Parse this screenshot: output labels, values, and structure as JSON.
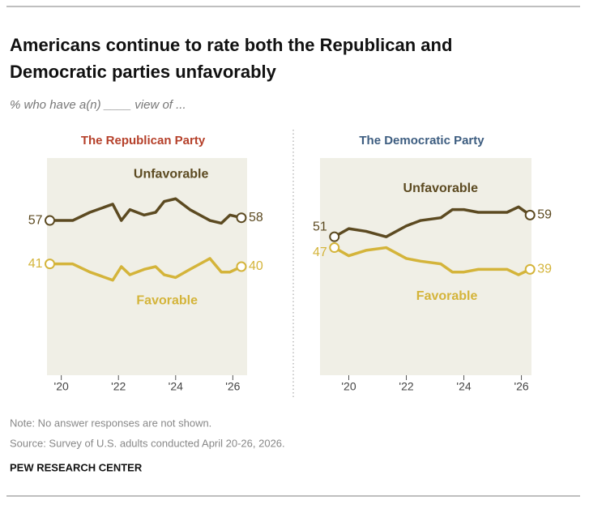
{
  "header": {
    "title": "Americans continue to rate both the Republican and Democratic parties unfavorably",
    "subtitle": "% who have a(n) ____ view of ..."
  },
  "chart_data": [
    {
      "type": "line",
      "title": "The Republican Party",
      "title_color": "#b5402a",
      "xlim": [
        2019.5,
        2026.5
      ],
      "ylim": [
        0,
        80
      ],
      "xticks": [
        {
          "value": 2020,
          "label": "'20"
        },
        {
          "value": 2022,
          "label": "'22"
        },
        {
          "value": 2024,
          "label": "'24"
        },
        {
          "value": 2026,
          "label": "'26"
        }
      ],
      "x": [
        2019.6,
        2020.4,
        2021,
        2021.8,
        2022.1,
        2022.4,
        2022.9,
        2023.3,
        2023.6,
        2024,
        2024.5,
        2025.2,
        2025.6,
        2025.9,
        2026.3
      ],
      "series": [
        {
          "name": "Unfavorable",
          "color": "#5c4a21",
          "values": [
            57,
            57,
            60,
            63,
            57,
            61,
            59,
            60,
            64,
            65,
            61,
            57,
            56,
            59,
            58
          ]
        },
        {
          "name": "Favorable",
          "color": "#d4b43a",
          "values": [
            41,
            41,
            38,
            35,
            40,
            37,
            39,
            40,
            37,
            36,
            39,
            43,
            38,
            38,
            40
          ]
        }
      ]
    },
    {
      "type": "line",
      "title": "The Democratic Party",
      "title_color": "#3d5d80",
      "xlim": [
        2019,
        2026.35
      ],
      "ylim": [
        0,
        80
      ],
      "xticks": [
        {
          "value": 2020,
          "label": "'20"
        },
        {
          "value": 2022,
          "label": "'22"
        },
        {
          "value": 2024,
          "label": "'24"
        },
        {
          "value": 2026,
          "label": "'26"
        }
      ],
      "x": [
        2019.5,
        2020,
        2020.6,
        2021.3,
        2022,
        2022.5,
        2023.2,
        2023.6,
        2024,
        2024.5,
        2025.5,
        2025.9,
        2026.3
      ],
      "series": [
        {
          "name": "Unfavorable",
          "color": "#5c4a21",
          "values": [
            51,
            54,
            53,
            51,
            55,
            57,
            58,
            61,
            61,
            60,
            60,
            62,
            59
          ]
        },
        {
          "name": "Favorable",
          "color": "#d4b43a",
          "values": [
            47,
            44,
            46,
            47,
            43,
            42,
            41,
            38,
            38,
            39,
            39,
            37,
            39
          ]
        }
      ]
    }
  ],
  "footer": {
    "note": "Note: No answer responses are not shown.",
    "source": "Source: Survey of U.S. adults conducted April 20-26, 2026.",
    "credit": "PEW RESEARCH CENTER"
  }
}
